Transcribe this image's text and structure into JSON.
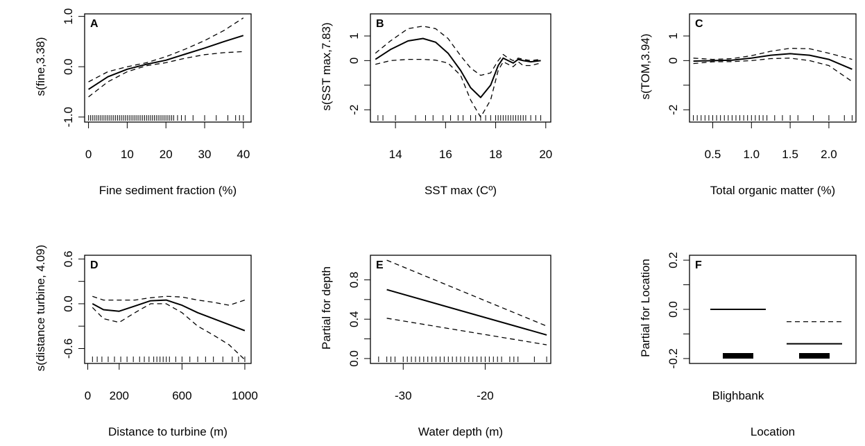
{
  "chart_data": [
    {
      "type": "line",
      "panel": "A",
      "ylabel": "s(fine,3.38)",
      "xlabel": "Fine sediment fraction (%)",
      "xlim": [
        -1,
        42
      ],
      "ylim": [
        -1.1,
        1.05
      ],
      "xticks": [
        0,
        10,
        20,
        30,
        40
      ],
      "xtick_labels": [
        "0",
        "10",
        "20",
        "30",
        "40"
      ],
      "yticks": [
        -1.0,
        0.0,
        1.0
      ],
      "ytick_labels": [
        "-1.0",
        "0.0",
        "1.0"
      ],
      "series": [
        {
          "style": "fit",
          "x": [
            0,
            5,
            10,
            15,
            20,
            25,
            30,
            35,
            40
          ],
          "y": [
            -0.45,
            -0.2,
            -0.05,
            0.05,
            0.13,
            0.25,
            0.37,
            0.5,
            0.62
          ]
        },
        {
          "style": "upper",
          "x": [
            0,
            5,
            10,
            15,
            20,
            25,
            30,
            35,
            40
          ],
          "y": [
            -0.3,
            -0.1,
            0.0,
            0.08,
            0.2,
            0.35,
            0.52,
            0.72,
            0.97
          ]
        },
        {
          "style": "lower",
          "x": [
            0,
            5,
            10,
            15,
            20,
            25,
            30,
            35,
            40
          ],
          "y": [
            -0.6,
            -0.3,
            -0.1,
            0.02,
            0.08,
            0.17,
            0.24,
            0.28,
            0.3
          ]
        }
      ],
      "rug": [
        0,
        0.5,
        1,
        1.5,
        2,
        2.5,
        3,
        3.5,
        4,
        4.5,
        5,
        5.5,
        6,
        6.5,
        7,
        7.5,
        8,
        8.5,
        9,
        9.5,
        10,
        10.5,
        11,
        11.5,
        12,
        12.5,
        13,
        13.5,
        14,
        14.5,
        15,
        15.5,
        16,
        16.5,
        17,
        17.5,
        18,
        18.5,
        19,
        19.5,
        20,
        20.5,
        21,
        21.5,
        22,
        23,
        24,
        25,
        27,
        30,
        33,
        36,
        38,
        39,
        40
      ]
    },
    {
      "type": "line",
      "panel": "B",
      "ylabel": "s(SST max,7.83)",
      "xlabel": "SST max (Cº)",
      "xlim": [
        13,
        20.2
      ],
      "ylim": [
        -2.5,
        1.9
      ],
      "xticks": [
        14,
        16,
        18,
        20
      ],
      "xtick_labels": [
        "14",
        "16",
        "18",
        "20"
      ],
      "yticks": [
        -2,
        -1,
        0,
        1
      ],
      "ytick_labels": [
        "-2",
        "",
        "0",
        "1"
      ],
      "series": [
        {
          "style": "fit",
          "x": [
            13.2,
            13.8,
            14.5,
            15.1,
            15.6,
            16.1,
            16.6,
            17.0,
            17.4,
            17.8,
            18.1,
            18.3,
            18.5,
            18.7,
            18.9,
            19.1,
            19.4,
            19.8
          ],
          "y": [
            0.05,
            0.45,
            0.8,
            0.9,
            0.75,
            0.3,
            -0.4,
            -1.1,
            -1.5,
            -1.0,
            -0.2,
            0.1,
            0.0,
            -0.1,
            0.05,
            0.0,
            -0.05,
            0.0
          ]
        },
        {
          "style": "upper",
          "x": [
            13.2,
            13.8,
            14.5,
            15.1,
            15.6,
            16.1,
            16.6,
            17.0,
            17.4,
            17.8,
            18.1,
            18.3,
            18.5,
            18.7,
            18.9,
            19.1,
            19.4,
            19.8
          ],
          "y": [
            0.3,
            0.8,
            1.3,
            1.4,
            1.3,
            0.9,
            0.2,
            -0.3,
            -0.6,
            -0.5,
            0.0,
            0.25,
            0.1,
            0.0,
            0.1,
            0.05,
            0.0,
            0.05
          ]
        },
        {
          "style": "lower",
          "x": [
            13.2,
            13.8,
            14.5,
            15.1,
            15.6,
            16.1,
            16.6,
            17.0,
            17.4,
            17.8,
            18.1,
            18.3,
            18.5,
            18.7,
            18.9,
            19.1,
            19.4,
            19.8
          ],
          "y": [
            -0.15,
            0.0,
            0.05,
            0.05,
            0.02,
            -0.1,
            -0.6,
            -1.6,
            -2.3,
            -1.6,
            -0.4,
            -0.05,
            -0.15,
            -0.25,
            -0.05,
            -0.2,
            -0.2,
            -0.1
          ]
        }
      ],
      "rug": [
        13.3,
        13.5,
        14.0,
        14.8,
        15.2,
        15.5,
        15.9,
        16.2,
        16.5,
        16.7,
        17.0,
        17.2,
        17.4,
        17.6,
        17.8,
        18.0,
        18.1,
        18.2,
        18.3,
        18.4,
        18.5,
        18.6,
        18.7,
        18.8,
        18.9,
        19.0,
        19.1,
        19.2,
        19.4,
        19.6,
        19.8
      ]
    },
    {
      "type": "line",
      "panel": "C",
      "ylabel": "s(TOM,3.94)",
      "xlabel": "Total organic matter (%)",
      "xlim": [
        0.2,
        2.35
      ],
      "ylim": [
        -2.5,
        1.9
      ],
      "xticks": [
        0.5,
        1.0,
        1.5,
        2.0
      ],
      "xtick_labels": [
        "0.5",
        "1.0",
        "1.5",
        "2.0"
      ],
      "yticks": [
        -2,
        -1,
        0,
        1
      ],
      "ytick_labels": [
        "-2",
        "",
        "0",
        "1"
      ],
      "series": [
        {
          "style": "fit",
          "x": [
            0.25,
            0.5,
            0.75,
            1.0,
            1.25,
            1.5,
            1.75,
            2.0,
            2.3
          ],
          "y": [
            -0.02,
            0.0,
            0.02,
            0.1,
            0.22,
            0.28,
            0.22,
            0.05,
            -0.35
          ]
        },
        {
          "style": "upper",
          "x": [
            0.25,
            0.5,
            0.75,
            1.0,
            1.25,
            1.5,
            1.75,
            2.0,
            2.3
          ],
          "y": [
            0.1,
            0.05,
            0.08,
            0.2,
            0.38,
            0.5,
            0.48,
            0.3,
            0.05
          ]
        },
        {
          "style": "lower",
          "x": [
            0.25,
            0.5,
            0.75,
            1.0,
            1.25,
            1.5,
            1.75,
            2.0,
            2.3
          ],
          "y": [
            -0.12,
            -0.05,
            -0.04,
            0.0,
            0.08,
            0.1,
            0.0,
            -0.2,
            -0.85
          ]
        }
      ],
      "rug": [
        0.25,
        0.3,
        0.35,
        0.4,
        0.45,
        0.5,
        0.55,
        0.6,
        0.65,
        0.7,
        0.75,
        0.8,
        0.85,
        0.9,
        0.95,
        1.0,
        1.05,
        1.1,
        1.15,
        1.2,
        1.3,
        1.4,
        1.5,
        1.6,
        1.8,
        2.0,
        2.2,
        2.3
      ]
    },
    {
      "type": "line",
      "panel": "D",
      "ylabel": "s(distance turbine, 4.09)",
      "xlabel": "Distance to turbine (m)",
      "xlim": [
        -20,
        1040
      ],
      "ylim": [
        -0.8,
        0.65
      ],
      "xticks": [
        0,
        200,
        600,
        1000
      ],
      "xtick_labels": [
        "0",
        "200",
        "600",
        "1000"
      ],
      "yticks": [
        -0.6,
        -0.3,
        0.0,
        0.3,
        0.6
      ],
      "ytick_labels": [
        "-0.6",
        "",
        "0.0",
        "",
        "0.6"
      ],
      "series": [
        {
          "style": "fit",
          "x": [
            30,
            100,
            200,
            300,
            400,
            500,
            600,
            700,
            800,
            900,
            1000
          ],
          "y": [
            0.0,
            -0.08,
            -0.1,
            -0.03,
            0.04,
            0.05,
            -0.02,
            -0.12,
            -0.2,
            -0.28,
            -0.36
          ]
        },
        {
          "style": "upper",
          "x": [
            30,
            100,
            200,
            300,
            400,
            500,
            600,
            700,
            800,
            900,
            1000
          ],
          "y": [
            0.1,
            0.05,
            0.05,
            0.05,
            0.08,
            0.1,
            0.09,
            0.05,
            0.02,
            -0.02,
            0.05
          ]
        },
        {
          "style": "lower",
          "x": [
            30,
            100,
            200,
            300,
            400,
            500,
            600,
            700,
            800,
            900,
            1000
          ],
          "y": [
            -0.05,
            -0.2,
            -0.25,
            -0.12,
            0.0,
            0.0,
            -0.12,
            -0.3,
            -0.42,
            -0.55,
            -0.75
          ]
        }
      ],
      "rug": [
        30,
        60,
        90,
        130,
        170,
        210,
        250,
        290,
        330,
        360,
        390,
        420,
        440,
        460,
        480,
        500,
        520,
        560,
        600,
        650,
        700,
        750,
        800,
        860,
        920,
        960,
        1000
      ]
    },
    {
      "type": "line",
      "panel": "E",
      "ylabel": "Partial for depth",
      "xlabel": "Water depth (m)",
      "xlim": [
        -34,
        -12
      ],
      "ylim": [
        -0.05,
        1.05
      ],
      "xticks": [
        -30,
        -20
      ],
      "xtick_labels": [
        "-30",
        "-20"
      ],
      "yticks": [
        0.0,
        0.2,
        0.4,
        0.6,
        0.8
      ],
      "ytick_labels": [
        "0.0",
        "",
        "0.4",
        "",
        "0.8"
      ],
      "series": [
        {
          "style": "fit",
          "x": [
            -32,
            -12.5
          ],
          "y": [
            0.7,
            0.24
          ]
        },
        {
          "style": "upper",
          "x": [
            -32,
            -12.5
          ],
          "y": [
            1.0,
            0.33
          ]
        },
        {
          "style": "lower",
          "x": [
            -32,
            -12.5
          ],
          "y": [
            0.41,
            0.14
          ]
        }
      ],
      "rug": [
        -33,
        -32,
        -31.5,
        -31,
        -30,
        -29.5,
        -29,
        -28.5,
        -28,
        -27.5,
        -27,
        -26.5,
        -26,
        -25.5,
        -25,
        -24.5,
        -24,
        -23.5,
        -23,
        -22.5,
        -22,
        -21.5,
        -21,
        -20.5,
        -20,
        -19.5,
        -19,
        -18.5,
        -18,
        -17,
        -16.5,
        -16,
        -14,
        -12.5
      ]
    },
    {
      "type": "bar",
      "panel": "F",
      "ylabel": "Partial for Location",
      "xlabel": "Location",
      "categories": [
        "Blighbank",
        ""
      ],
      "ylim": [
        -0.22,
        0.22
      ],
      "yticks": [
        -0.2,
        -0.1,
        0.0,
        0.1,
        0.2
      ],
      "ytick_labels": [
        "-0.2",
        "",
        "0.0",
        "",
        "0.2"
      ],
      "levels": [
        {
          "name": "Blighbank",
          "fit": 0.0,
          "upper": 0.0,
          "lower": 0.0
        },
        {
          "name": "",
          "fit": -0.14,
          "upper": -0.05,
          "lower": -0.23
        }
      ]
    }
  ]
}
